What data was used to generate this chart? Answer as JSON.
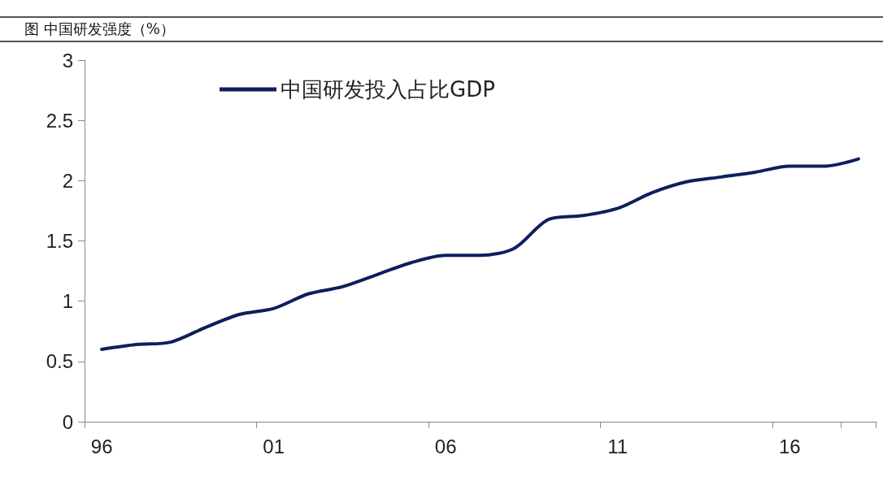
{
  "chart_data": {
    "type": "line",
    "title": "图  中国研发强度（%）",
    "categories": [
      "96",
      null,
      null,
      null,
      null,
      "01",
      null,
      null,
      null,
      null,
      "06",
      null,
      null,
      null,
      null,
      "11",
      null,
      null,
      null,
      null,
      "16",
      null,
      null
    ],
    "series": [
      {
        "name": "中国研发投入占比GDP",
        "color": "#0d1f5c",
        "values": [
          0.6,
          0.64,
          0.66,
          0.78,
          0.89,
          0.94,
          1.06,
          1.12,
          1.22,
          1.32,
          1.38,
          1.38,
          1.44,
          1.68,
          1.71,
          1.77,
          1.9,
          1.99,
          2.03,
          2.07,
          2.12,
          2.12,
          2.18
        ]
      }
    ],
    "ylim": [
      0,
      3
    ],
    "yticks": [
      0,
      0.5,
      1,
      1.5,
      2,
      2.5,
      3
    ],
    "grid": false,
    "legend": "top left",
    "marker": "none",
    "line_style": "solid"
  }
}
